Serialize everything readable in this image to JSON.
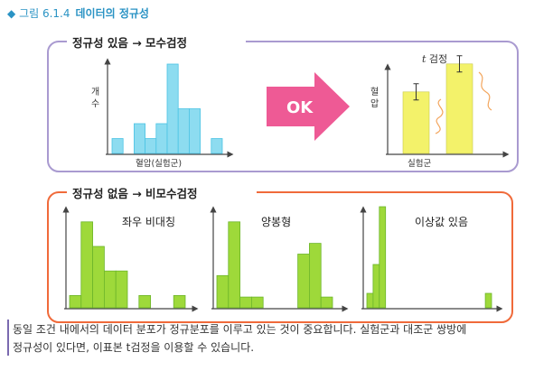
{
  "figure": {
    "marker": "◆",
    "number": "그림 6.1.4",
    "title": "데이터의 정규성"
  },
  "top_panel": {
    "heading": "정규성 있음 → 모수검정",
    "histogram": {
      "ylabel": "개\n수",
      "xlabel": "혈압(실험군)",
      "values": [
        1,
        0,
        2,
        1,
        2,
        6,
        3,
        3,
        0,
        1
      ]
    },
    "arrow_label": "OK",
    "bar_chart": {
      "title": "t 검정",
      "title_t": "t",
      "title_rest": "검정",
      "ylabel": "혈\n압",
      "xlabel": "실험군",
      "values": [
        0.55,
        0.8
      ]
    }
  },
  "bottom_panel": {
    "heading": "정규성 없음 → 비모수검정",
    "charts": [
      {
        "label": "좌우 비대칭",
        "values": [
          1,
          7,
          5,
          3,
          3,
          0,
          1,
          0,
          0,
          1
        ]
      },
      {
        "label": "양봉형",
        "values": [
          3,
          8,
          1,
          1,
          0,
          0,
          0,
          5,
          6,
          1
        ]
      },
      {
        "label": "이상값 있음",
        "values": [
          1,
          3,
          7,
          0,
          0,
          0,
          0,
          0,
          0,
          0,
          0,
          0,
          0,
          0,
          0,
          0,
          0,
          0,
          0,
          1
        ]
      }
    ]
  },
  "caption": {
    "line1": "동일 조건 내에서의 데이터 분포가 정규분포를 이루고 있는 것이 중요합니다. 실험군과 대조군 쌍방에",
    "line2": "정규성이 있다면, 이표본 t검정을 이용할 수 있습니다."
  },
  "colors": {
    "title_blue": "#2a93c4",
    "top_border": "#a99ad0",
    "bottom_border": "#f06a3a",
    "cyan_bar": "#8ddcf0",
    "cyan_edge": "#4cc4e4",
    "yellow_bar": "#f3f26a",
    "green_bar": "#9ed93a",
    "green_edge": "#6cb52a",
    "arrow_pink": "#ee5a95",
    "wavy_orange": "#f3a55c"
  }
}
